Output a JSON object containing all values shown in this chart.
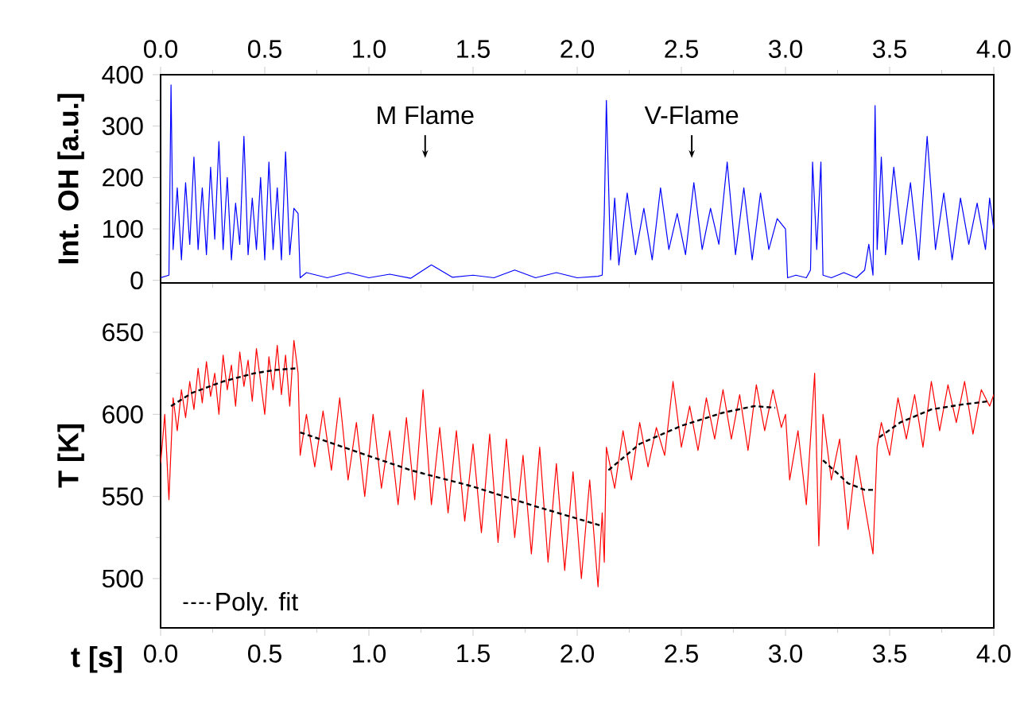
{
  "chart_data": [
    {
      "type": "line",
      "ylabel": "Int. OH [a.u.]",
      "xlim": [
        0,
        4
      ],
      "xticks": [
        {
          "value": 0,
          "label": "0.0"
        },
        {
          "value": 0.5,
          "label": "0.5"
        },
        {
          "value": 1,
          "label": "1.0"
        },
        {
          "value": 1.5,
          "label": "1.5"
        },
        {
          "value": 2,
          "label": "2.0"
        },
        {
          "value": 2.5,
          "label": "2.5"
        },
        {
          "value": 3,
          "label": "3.0"
        },
        {
          "value": 3.5,
          "label": "3.5"
        },
        {
          "value": 4,
          "label": "4.0"
        }
      ],
      "ylim": [
        -5,
        400
      ],
      "yticks": [
        0,
        100,
        200,
        300,
        400
      ],
      "annotations": [
        "M Flame",
        "V-Flame"
      ],
      "series": [
        {
          "color": "#0000ff",
          "x": [
            0.0,
            0.04,
            0.05,
            0.06,
            0.08,
            0.1,
            0.12,
            0.14,
            0.16,
            0.18,
            0.2,
            0.22,
            0.24,
            0.26,
            0.28,
            0.3,
            0.32,
            0.34,
            0.36,
            0.38,
            0.4,
            0.42,
            0.44,
            0.46,
            0.48,
            0.5,
            0.52,
            0.54,
            0.56,
            0.58,
            0.6,
            0.62,
            0.64,
            0.66,
            0.67,
            0.7,
            0.8,
            0.9,
            1.0,
            1.1,
            1.2,
            1.3,
            1.4,
            1.5,
            1.6,
            1.7,
            1.8,
            1.9,
            2.0,
            2.1,
            2.12,
            2.13,
            2.14,
            2.16,
            2.18,
            2.2,
            2.24,
            2.28,
            2.32,
            2.36,
            2.4,
            2.44,
            2.48,
            2.52,
            2.56,
            2.6,
            2.64,
            2.68,
            2.72,
            2.76,
            2.8,
            2.84,
            2.88,
            2.92,
            2.96,
            3.0,
            3.01,
            3.05,
            3.1,
            3.12,
            3.13,
            3.15,
            3.17,
            3.18,
            3.22,
            3.28,
            3.34,
            3.38,
            3.4,
            3.42,
            3.43,
            3.44,
            3.46,
            3.48,
            3.52,
            3.56,
            3.6,
            3.64,
            3.68,
            3.72,
            3.76,
            3.8,
            3.84,
            3.88,
            3.92,
            3.96,
            3.98,
            4.0
          ],
          "values": [
            5,
            10,
            380,
            60,
            180,
            40,
            190,
            70,
            240,
            60,
            180,
            50,
            220,
            80,
            270,
            60,
            200,
            40,
            150,
            70,
            280,
            50,
            160,
            60,
            200,
            40,
            230,
            60,
            180,
            40,
            250,
            50,
            140,
            130,
            5,
            15,
            5,
            15,
            5,
            12,
            4,
            30,
            6,
            10,
            5,
            20,
            5,
            15,
            5,
            8,
            10,
            130,
            350,
            40,
            160,
            30,
            170,
            50,
            140,
            40,
            180,
            60,
            130,
            50,
            190,
            60,
            140,
            70,
            230,
            50,
            180,
            40,
            170,
            60,
            120,
            100,
            5,
            10,
            5,
            20,
            230,
            60,
            230,
            10,
            5,
            15,
            5,
            20,
            70,
            10,
            340,
            60,
            240,
            50,
            220,
            70,
            190,
            40,
            280,
            60,
            170,
            40,
            160,
            70,
            150,
            60,
            160,
            100
          ]
        }
      ]
    },
    {
      "type": "line",
      "xlabel": "t [s]",
      "ylabel": "T [K]",
      "xlim": [
        0,
        4
      ],
      "xticks": [
        {
          "value": 0,
          "label": "0.0"
        },
        {
          "value": 0.5,
          "label": "0.5"
        },
        {
          "value": 1,
          "label": "1.0"
        },
        {
          "value": 1.5,
          "label": "1.5"
        },
        {
          "value": 2,
          "label": "2.0"
        },
        {
          "value": 2.5,
          "label": "2.5"
        },
        {
          "value": 3,
          "label": "3.0"
        },
        {
          "value": 3.5,
          "label": "3.5"
        },
        {
          "value": 4,
          "label": "4.0"
        }
      ],
      "ylim": [
        470,
        680
      ],
      "yticks": [
        500,
        550,
        600,
        650
      ],
      "legend": "bottom left",
      "series": [
        {
          "color": "#ff0000",
          "x": [
            0.0,
            0.02,
            0.04,
            0.06,
            0.08,
            0.1,
            0.12,
            0.14,
            0.16,
            0.18,
            0.2,
            0.22,
            0.24,
            0.26,
            0.28,
            0.3,
            0.32,
            0.34,
            0.36,
            0.38,
            0.4,
            0.42,
            0.44,
            0.46,
            0.48,
            0.5,
            0.52,
            0.54,
            0.56,
            0.58,
            0.6,
            0.62,
            0.64,
            0.66,
            0.67,
            0.7,
            0.74,
            0.78,
            0.82,
            0.86,
            0.9,
            0.94,
            0.98,
            1.02,
            1.06,
            1.1,
            1.14,
            1.18,
            1.22,
            1.26,
            1.3,
            1.34,
            1.38,
            1.42,
            1.46,
            1.5,
            1.54,
            1.58,
            1.62,
            1.66,
            1.7,
            1.74,
            1.78,
            1.82,
            1.86,
            1.9,
            1.94,
            1.98,
            2.02,
            2.06,
            2.1,
            2.12,
            2.13,
            2.14,
            2.18,
            2.22,
            2.26,
            2.3,
            2.34,
            2.38,
            2.42,
            2.46,
            2.5,
            2.54,
            2.58,
            2.62,
            2.66,
            2.7,
            2.74,
            2.78,
            2.82,
            2.86,
            2.9,
            2.94,
            2.98,
            3.0,
            3.02,
            3.06,
            3.1,
            3.14,
            3.16,
            3.18,
            3.22,
            3.26,
            3.3,
            3.34,
            3.38,
            3.42,
            3.44,
            3.46,
            3.5,
            3.54,
            3.58,
            3.62,
            3.66,
            3.7,
            3.74,
            3.78,
            3.82,
            3.86,
            3.9,
            3.94,
            3.98,
            4.0
          ],
          "values": [
            570,
            600,
            548,
            610,
            590,
            615,
            598,
            620,
            603,
            628,
            607,
            632,
            611,
            625,
            600,
            636,
            615,
            630,
            605,
            638,
            617,
            633,
            608,
            640,
            620,
            600,
            635,
            615,
            642,
            612,
            636,
            605,
            645,
            625,
            575,
            600,
            568,
            602,
            566,
            610,
            560,
            595,
            550,
            600,
            555,
            590,
            545,
            598,
            548,
            615,
            545,
            592,
            540,
            590,
            535,
            582,
            528,
            588,
            522,
            585,
            525,
            575,
            515,
            580,
            510,
            570,
            505,
            565,
            500,
            560,
            495,
            540,
            510,
            580,
            555,
            590,
            560,
            595,
            568,
            592,
            575,
            620,
            580,
            605,
            578,
            610,
            585,
            615,
            585,
            612,
            578,
            618,
            590,
            615,
            592,
            600,
            560,
            590,
            545,
            625,
            520,
            600,
            560,
            585,
            530,
            575,
            545,
            515,
            580,
            595,
            575,
            610,
            585,
            612,
            580,
            620,
            590,
            618,
            595,
            620,
            588,
            615,
            605,
            612
          ]
        },
        {
          "name": "Poly. fit",
          "color": "#000000",
          "line_style": "dashed",
          "x": [
            0.05,
            0.15,
            0.3,
            0.45,
            0.55,
            0.65,
            0.66,
            0.67,
            0.9,
            1.2,
            1.5,
            1.8,
            2.12,
            2.13,
            2.15,
            2.3,
            2.5,
            2.7,
            2.85,
            2.95,
            3.0,
            3.18,
            3.25,
            3.3,
            3.38,
            3.42,
            3.44,
            3.45,
            3.55,
            3.7,
            3.85,
            3.98
          ],
          "values": [
            605,
            613,
            620,
            625,
            627,
            628,
            null,
            589,
            579,
            566,
            556,
            544,
            532,
            null,
            566,
            582,
            593,
            601,
            605,
            604,
            null,
            572,
            564,
            558,
            554,
            554,
            null,
            586,
            595,
            603,
            606,
            608
          ]
        }
      ]
    }
  ]
}
